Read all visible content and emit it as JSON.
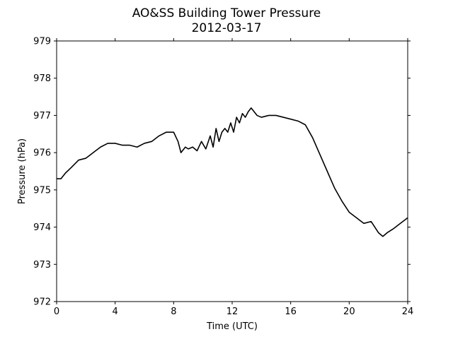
{
  "chart_data": {
    "type": "line",
    "title": "AO&SS Building Tower Pressure",
    "subtitle": "2012-03-17",
    "xlabel": "Time (UTC)",
    "ylabel": "Pressure (hPa)",
    "xlim": [
      0,
      24
    ],
    "ylim": [
      972,
      979
    ],
    "xticks": [
      0,
      4,
      8,
      12,
      16,
      20,
      24
    ],
    "yticks": [
      972,
      973,
      974,
      975,
      976,
      977,
      978,
      979
    ],
    "grid": false,
    "line_color": "#000000",
    "series": [
      {
        "x": [
          0,
          0.3,
          0.6,
          1.0,
          1.5,
          2.0,
          2.5,
          3.0,
          3.5,
          4.0,
          4.5,
          5.0,
          5.5,
          6.0,
          6.5,
          7.0,
          7.5,
          8.0,
          8.3,
          8.5,
          8.8,
          9.0,
          9.3,
          9.6,
          9.9,
          10.2,
          10.5,
          10.7,
          10.9,
          11.1,
          11.3,
          11.5,
          11.7,
          11.9,
          12.1,
          12.3,
          12.5,
          12.7,
          12.9,
          13.1,
          13.3,
          13.5,
          13.7,
          14.0,
          14.5,
          15.0,
          15.5,
          16.0,
          16.5,
          17.0,
          17.5,
          18.0,
          18.5,
          19.0,
          19.5,
          20.0,
          20.5,
          21.0,
          21.5,
          22.0,
          22.3,
          22.6,
          23.0,
          23.5,
          24.0
        ],
        "y": [
          975.3,
          975.3,
          975.45,
          975.6,
          975.8,
          975.85,
          976.0,
          976.15,
          976.25,
          976.25,
          976.2,
          976.2,
          976.15,
          976.25,
          976.3,
          976.45,
          976.55,
          976.55,
          976.3,
          976.0,
          976.15,
          976.1,
          976.15,
          976.05,
          976.3,
          976.1,
          976.45,
          976.15,
          976.65,
          976.3,
          976.55,
          976.65,
          976.55,
          976.8,
          976.55,
          976.95,
          976.8,
          977.05,
          976.95,
          977.1,
          977.2,
          977.1,
          977.0,
          976.95,
          977.0,
          977.0,
          976.95,
          976.9,
          976.85,
          976.75,
          976.4,
          975.95,
          975.5,
          975.05,
          974.7,
          974.4,
          974.25,
          974.1,
          974.15,
          973.85,
          973.75,
          973.85,
          973.95,
          974.1,
          974.25
        ]
      }
    ]
  }
}
